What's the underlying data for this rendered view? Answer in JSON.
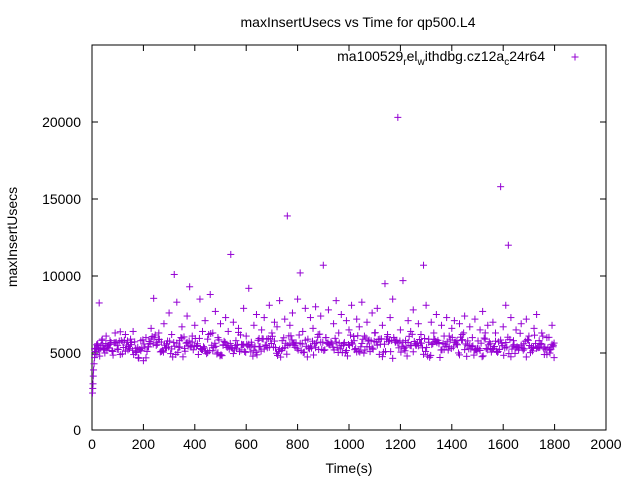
{
  "chart_data": {
    "type": "scatter",
    "title": "maxInsertUsecs vs Time for qp500.L4",
    "xlabel": "Time(s)",
    "ylabel": "maxInsertUsecs",
    "xlim": [
      0,
      2000
    ],
    "ylim": [
      0,
      25000
    ],
    "grid": false,
    "legend_position": "top-right",
    "marker": "+",
    "x_ticks": [
      0,
      200,
      400,
      600,
      800,
      1000,
      1200,
      1400,
      1600,
      1800,
      2000
    ],
    "y_ticks": [
      0,
      5000,
      10000,
      15000,
      20000
    ],
    "series": [
      {
        "name_parts": {
          "prefix": "ma100529",
          "sub1": "r",
          "mid1": "el",
          "sub2": "w",
          "mid2": "ithdbg.cz12a",
          "sub3": "c",
          "suffix": "24r64"
        },
        "color": "#9400d3",
        "points": [
          [
            2,
            2400
          ],
          [
            3,
            2700
          ],
          [
            4,
            3000
          ],
          [
            5,
            3500
          ],
          [
            6,
            3900
          ],
          [
            8,
            4300
          ],
          [
            10,
            4700
          ],
          [
            12,
            5100
          ],
          [
            15,
            4900
          ],
          [
            18,
            5300
          ],
          [
            22,
            5600
          ],
          [
            25,
            5200
          ],
          [
            28,
            8250
          ],
          [
            30,
            4800
          ],
          [
            35,
            5500
          ],
          [
            40,
            5900
          ],
          [
            45,
            5300
          ],
          [
            50,
            5000
          ],
          [
            55,
            6100
          ],
          [
            60,
            5400
          ],
          [
            70,
            5800
          ],
          [
            80,
            5100
          ],
          [
            90,
            6300
          ],
          [
            100,
            5500
          ],
          [
            110,
            4900
          ],
          [
            120,
            5700
          ],
          [
            130,
            6200
          ],
          [
            140,
            5200
          ],
          [
            150,
            5900
          ],
          [
            160,
            6400
          ],
          [
            170,
            5300
          ],
          [
            180,
            4700
          ],
          [
            190,
            5800
          ],
          [
            200,
            4500
          ],
          [
            210,
            6000
          ],
          [
            220,
            5400
          ],
          [
            230,
            6600
          ],
          [
            240,
            8550
          ],
          [
            250,
            5700
          ],
          [
            260,
            6300
          ],
          [
            270,
            5100
          ],
          [
            280,
            6900
          ],
          [
            290,
            5600
          ],
          [
            300,
            7600
          ],
          [
            310,
            6200
          ],
          [
            320,
            10100
          ],
          [
            330,
            8300
          ],
          [
            340,
            5800
          ],
          [
            350,
            6700
          ],
          [
            360,
            5300
          ],
          [
            370,
            7400
          ],
          [
            380,
            9300
          ],
          [
            390,
            6100
          ],
          [
            400,
            6800
          ],
          [
            410,
            5600
          ],
          [
            420,
            8500
          ],
          [
            430,
            6400
          ],
          [
            440,
            7100
          ],
          [
            450,
            5900
          ],
          [
            460,
            8800
          ],
          [
            470,
            6300
          ],
          [
            480,
            7700
          ],
          [
            490,
            6000
          ],
          [
            500,
            6900
          ],
          [
            510,
            5500
          ],
          [
            520,
            7300
          ],
          [
            530,
            6400
          ],
          [
            540,
            11400
          ],
          [
            550,
            7000
          ],
          [
            560,
            5800
          ],
          [
            570,
            6600
          ],
          [
            580,
            5200
          ],
          [
            590,
            7900
          ],
          [
            600,
            6100
          ],
          [
            610,
            9200
          ],
          [
            620,
            5700
          ],
          [
            630,
            6800
          ],
          [
            640,
            7500
          ],
          [
            650,
            5400
          ],
          [
            660,
            6500
          ],
          [
            670,
            7300
          ],
          [
            680,
            5900
          ],
          [
            690,
            8100
          ],
          [
            700,
            6300
          ],
          [
            710,
            7000
          ],
          [
            720,
            6700
          ],
          [
            730,
            8400
          ],
          [
            740,
            5800
          ],
          [
            750,
            7200
          ],
          [
            760,
            13900
          ],
          [
            770,
            6800
          ],
          [
            780,
            7600
          ],
          [
            790,
            5500
          ],
          [
            800,
            8500
          ],
          [
            810,
            10200
          ],
          [
            820,
            6400
          ],
          [
            830,
            7900
          ],
          [
            840,
            5900
          ],
          [
            850,
            7300
          ],
          [
            860,
            6600
          ],
          [
            870,
            8000
          ],
          [
            880,
            6200
          ],
          [
            890,
            7400
          ],
          [
            900,
            10700
          ],
          [
            910,
            6000
          ],
          [
            920,
            7800
          ],
          [
            930,
            5700
          ],
          [
            940,
            6900
          ],
          [
            950,
            8400
          ],
          [
            960,
            6300
          ],
          [
            970,
            7500
          ],
          [
            980,
            5600
          ],
          [
            990,
            7100
          ],
          [
            1000,
            6500
          ],
          [
            1010,
            8100
          ],
          [
            1020,
            5800
          ],
          [
            1030,
            7200
          ],
          [
            1040,
            6700
          ],
          [
            1050,
            8300
          ],
          [
            1060,
            6100
          ],
          [
            1070,
            7000
          ],
          [
            1080,
            5400
          ],
          [
            1090,
            7600
          ],
          [
            1100,
            6300
          ],
          [
            1110,
            7900
          ],
          [
            1120,
            5900
          ],
          [
            1130,
            6800
          ],
          [
            1140,
            9500
          ],
          [
            1150,
            6200
          ],
          [
            1160,
            7300
          ],
          [
            1170,
            8500
          ],
          [
            1180,
            5700
          ],
          [
            1190,
            20300
          ],
          [
            1200,
            6500
          ],
          [
            1210,
            9700
          ],
          [
            1220,
            5800
          ],
          [
            1230,
            7100
          ],
          [
            1240,
            6400
          ],
          [
            1250,
            7800
          ],
          [
            1260,
            5500
          ],
          [
            1270,
            6900
          ],
          [
            1280,
            6200
          ],
          [
            1290,
            10700
          ],
          [
            1300,
            8100
          ],
          [
            1310,
            5900
          ],
          [
            1320,
            7000
          ],
          [
            1330,
            6300
          ],
          [
            1340,
            7500
          ],
          [
            1350,
            5600
          ],
          [
            1360,
            6800
          ],
          [
            1370,
            6100
          ],
          [
            1380,
            7300
          ],
          [
            1390,
            5400
          ],
          [
            1400,
            6600
          ],
          [
            1410,
            7100
          ],
          [
            1420,
            5800
          ],
          [
            1430,
            6900
          ],
          [
            1440,
            6200
          ],
          [
            1450,
            7400
          ],
          [
            1460,
            5500
          ],
          [
            1470,
            6700
          ],
          [
            1480,
            6000
          ],
          [
            1490,
            7200
          ],
          [
            1500,
            5300
          ],
          [
            1510,
            6500
          ],
          [
            1520,
            7700
          ],
          [
            1530,
            5900
          ],
          [
            1540,
            6800
          ],
          [
            1550,
            5600
          ],
          [
            1560,
            7000
          ],
          [
            1570,
            6300
          ],
          [
            1580,
            5100
          ],
          [
            1590,
            15800
          ],
          [
            1600,
            6700
          ],
          [
            1610,
            8100
          ],
          [
            1620,
            12000
          ],
          [
            1630,
            7300
          ],
          [
            1640,
            5800
          ],
          [
            1650,
            6500
          ],
          [
            1660,
            5200
          ],
          [
            1670,
            6900
          ],
          [
            1680,
            5600
          ],
          [
            1690,
            7200
          ],
          [
            1700,
            6100
          ],
          [
            1710,
            5400
          ],
          [
            1720,
            6600
          ],
          [
            1730,
            7500
          ],
          [
            1740,
            5800
          ],
          [
            1750,
            6300
          ],
          [
            1760,
            4900
          ],
          [
            1770,
            6000
          ],
          [
            1780,
            5200
          ],
          [
            1790,
            6800
          ],
          [
            1795,
            5500
          ],
          [
            1798,
            4700
          ]
        ],
        "band": {
          "x_start": 10,
          "x_end": 1800,
          "step": 4,
          "y_center": 5500,
          "y_spread": 700,
          "seed": 7
        }
      }
    ]
  }
}
